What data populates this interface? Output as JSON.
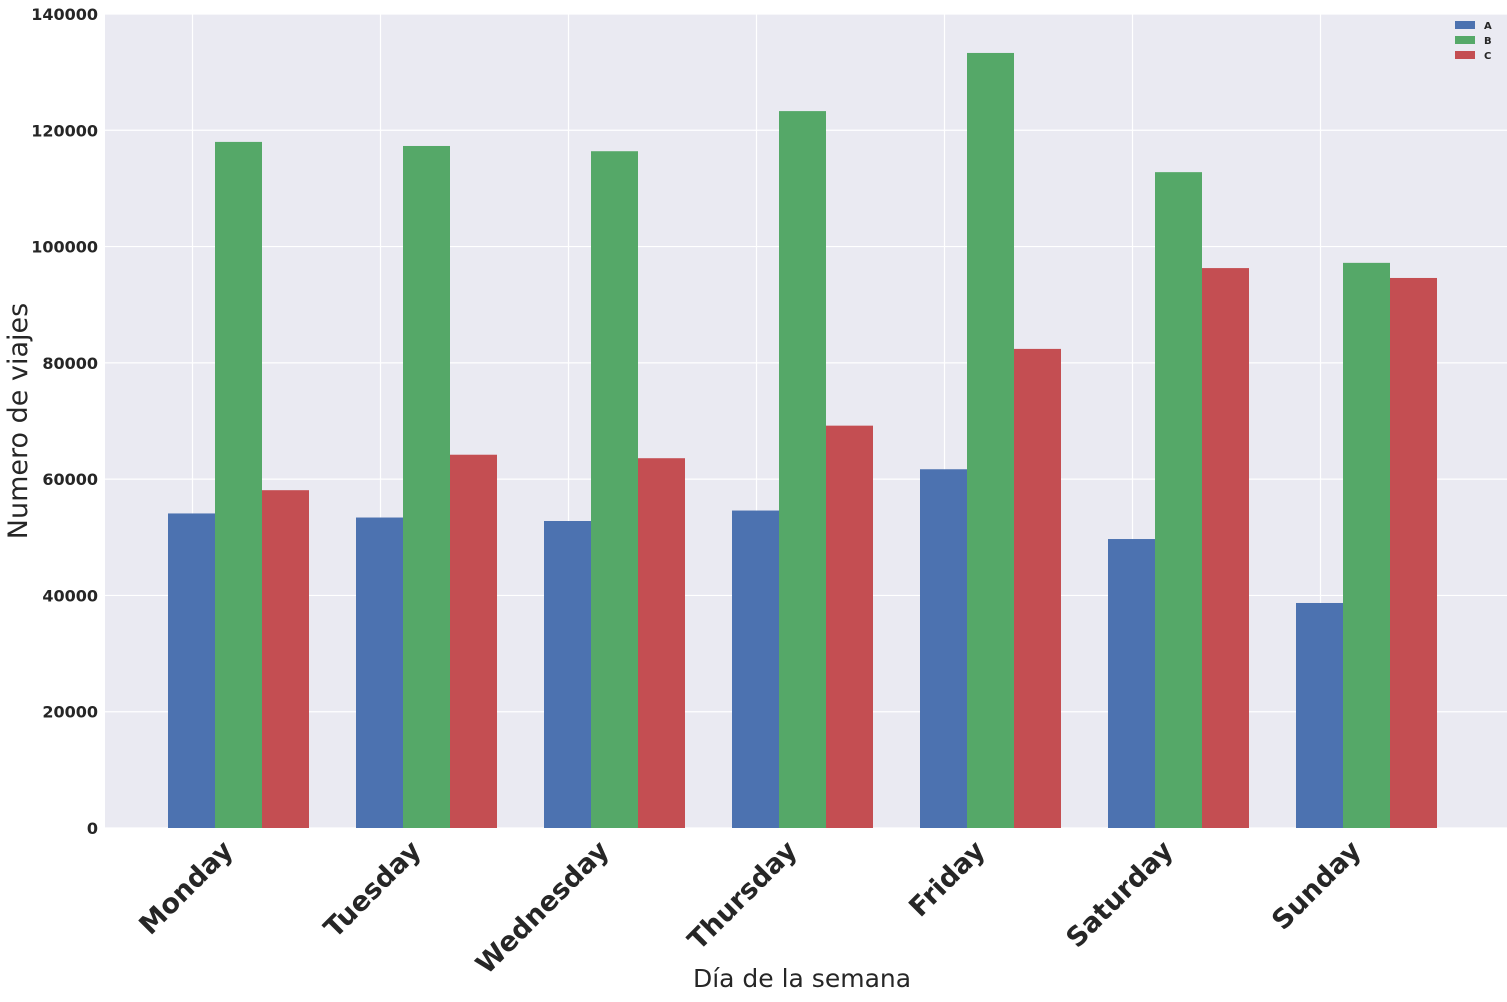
{
  "chart_data": {
    "type": "bar",
    "title": "",
    "xlabel": "Día de la semana",
    "ylabel": "Numero de viajes",
    "categories": [
      "Monday",
      "Tuesday",
      "Wednesday",
      "Thursday",
      "Friday",
      "Saturday",
      "Sunday"
    ],
    "series": [
      {
        "name": "A",
        "color": "#4c72b0",
        "values": [
          54100,
          53400,
          52800,
          54600,
          61700,
          49700,
          38700
        ]
      },
      {
        "name": "B",
        "color": "#55a868",
        "values": [
          118000,
          117300,
          116400,
          123300,
          133300,
          112800,
          97200
        ]
      },
      {
        "name": "C",
        "color": "#c44e52",
        "values": [
          58100,
          64200,
          63600,
          69200,
          82400,
          96300,
          94600
        ]
      }
    ],
    "ylim": [
      0,
      140000
    ],
    "yticks": [
      0,
      20000,
      40000,
      60000,
      80000,
      100000,
      120000,
      140000
    ],
    "grid": true,
    "legend_position": "top-right",
    "background_color": "#eaeaf2",
    "grid_color": "#ffffff"
  }
}
